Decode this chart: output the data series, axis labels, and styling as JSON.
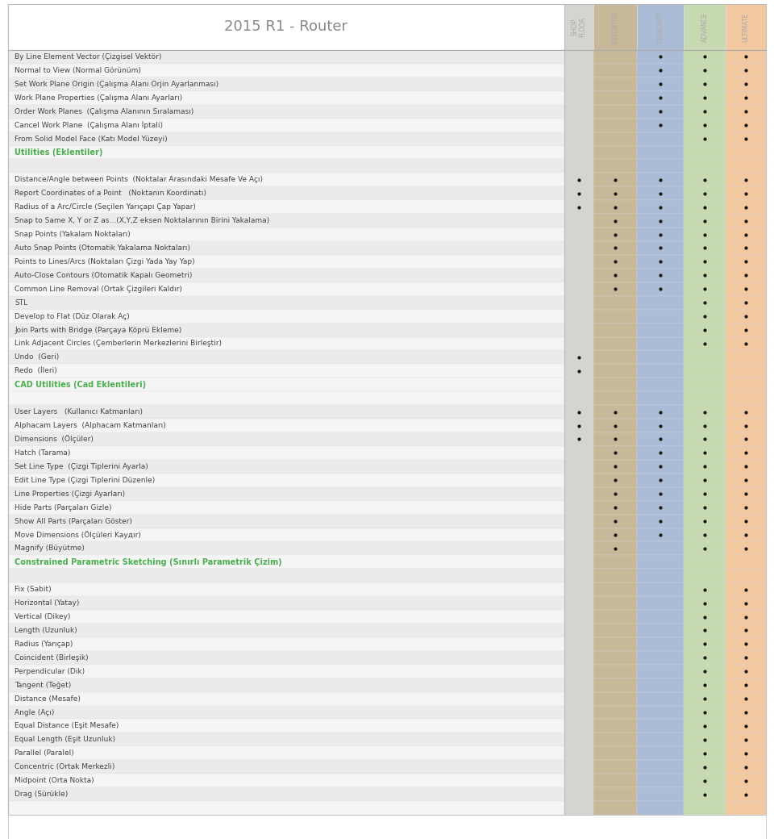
{
  "title": "2015 R1 - Router",
  "columns": [
    "SHOP\nFLOOR",
    "ESSENTIAL",
    "STANDART",
    "ADVANCE",
    "ULTIMATE"
  ],
  "col_colors": [
    "#d4d4d0",
    "#c8b89a",
    "#aabcd6",
    "#c6d9b0",
    "#f2c8a0"
  ],
  "rows": [
    {
      "label": "By Line Element Vector (Çizgisel Vektör)",
      "dots": [
        0,
        0,
        1,
        1,
        1
      ],
      "section": null
    },
    {
      "label": "Normal to View (Normal Görünüm)",
      "dots": [
        0,
        0,
        1,
        1,
        1
      ],
      "section": null
    },
    {
      "label": "Set Work Plane Origin (Çalışma Alanı Orjin Ayarlanması)",
      "dots": [
        0,
        0,
        1,
        1,
        1
      ],
      "section": null
    },
    {
      "label": "Work Plane Properties (Çalışma Alanı Ayarları)",
      "dots": [
        0,
        0,
        1,
        1,
        1
      ],
      "section": null
    },
    {
      "label": "Order Work Planes  (Çalışma Alanının Sıralaması)",
      "dots": [
        0,
        0,
        1,
        1,
        1
      ],
      "section": null
    },
    {
      "label": "Cancel Work Plane  (Çalışma Alanı İptali)",
      "dots": [
        0,
        0,
        1,
        1,
        1
      ],
      "section": null
    },
    {
      "label": "From Solid Model Face (Katı Model Yüzeyi)",
      "dots": [
        0,
        0,
        0,
        1,
        1
      ],
      "section": null
    },
    {
      "label": "Utilities (Eklentiler)",
      "dots": [
        0,
        0,
        0,
        0,
        0
      ],
      "section": "green"
    },
    {
      "label": "",
      "dots": [
        0,
        0,
        0,
        0,
        0
      ],
      "section": null
    },
    {
      "label": "Distance/Angle between Points  (Noktalar Arasındaki Mesafe Ve Açı)",
      "dots": [
        1,
        1,
        1,
        1,
        1
      ],
      "section": null
    },
    {
      "label": "Report Coordinates of a Point   (Noktanın Koordinatı)",
      "dots": [
        1,
        1,
        1,
        1,
        1
      ],
      "section": null
    },
    {
      "label": "Radius of a Arc/Circle (Seçilen Yarıçapı Çap Yapar)",
      "dots": [
        1,
        1,
        1,
        1,
        1
      ],
      "section": null
    },
    {
      "label": "Snap to Same X, Y or Z as…(X,Y,Z eksen Noktalarının Birini Yakalama)",
      "dots": [
        0,
        1,
        1,
        1,
        1
      ],
      "section": null
    },
    {
      "label": "Snap Points (Yakalam Noktaları)",
      "dots": [
        0,
        1,
        1,
        1,
        1
      ],
      "section": null
    },
    {
      "label": "Auto Snap Points (Otomatik Yakalama Noktaları)",
      "dots": [
        0,
        1,
        1,
        1,
        1
      ],
      "section": null
    },
    {
      "label": "Points to Lines/Arcs (Noktaları Çizgi Yada Yay Yap)",
      "dots": [
        0,
        1,
        1,
        1,
        1
      ],
      "section": null
    },
    {
      "label": "Auto-Close Contours (Otomatik Kapalı Geometri)",
      "dots": [
        0,
        1,
        1,
        1,
        1
      ],
      "section": null
    },
    {
      "label": "Common Line Removal (Ortak Çizgileri Kaldır)",
      "dots": [
        0,
        1,
        1,
        1,
        1
      ],
      "section": null
    },
    {
      "label": "STL",
      "dots": [
        0,
        0,
        0,
        1,
        1
      ],
      "section": null
    },
    {
      "label": "Develop to Flat (Düz Olarak Aç)",
      "dots": [
        0,
        0,
        0,
        1,
        1
      ],
      "section": null
    },
    {
      "label": "Join Parts with Bridge (Parçaya Köprü Ekleme)",
      "dots": [
        0,
        0,
        0,
        1,
        1
      ],
      "section": null
    },
    {
      "label": "Link Adjacent Circles (Çemberlerin Merkezlerini Birleştir)",
      "dots": [
        0,
        0,
        0,
        1,
        1
      ],
      "section": null
    },
    {
      "label": "Undo  (Geri)",
      "dots": [
        1,
        0,
        0,
        0,
        0
      ],
      "section": null
    },
    {
      "label": "Redo  (İleri)",
      "dots": [
        1,
        0,
        0,
        0,
        0
      ],
      "section": null
    },
    {
      "label": "CAD Utilities (Cad Eklentileri)",
      "dots": [
        0,
        0,
        0,
        0,
        0
      ],
      "section": "green"
    },
    {
      "label": "",
      "dots": [
        0,
        0,
        0,
        0,
        0
      ],
      "section": null
    },
    {
      "label": "User Layers   (Kullanıcı Katmanları)",
      "dots": [
        1,
        1,
        1,
        1,
        1
      ],
      "section": null
    },
    {
      "label": "Alphacam Layers  (Alphacam Katmanları)",
      "dots": [
        1,
        1,
        1,
        1,
        1
      ],
      "section": null
    },
    {
      "label": "Dimensions  (Ölçüler)",
      "dots": [
        1,
        1,
        1,
        1,
        1
      ],
      "section": null
    },
    {
      "label": "Hatch (Tarama)",
      "dots": [
        0,
        1,
        1,
        1,
        1
      ],
      "section": null
    },
    {
      "label": "Set Line Type  (Çizgi Tiplerini Ayarla)",
      "dots": [
        0,
        1,
        1,
        1,
        1
      ],
      "section": null
    },
    {
      "label": "Edit Line Type (Çizgi Tiplerini Düzenle)",
      "dots": [
        0,
        1,
        1,
        1,
        1
      ],
      "section": null
    },
    {
      "label": "Line Properties (Çizgi Ayarları)",
      "dots": [
        0,
        1,
        1,
        1,
        1
      ],
      "section": null
    },
    {
      "label": "Hide Parts (Parçaları Gizle)",
      "dots": [
        0,
        1,
        1,
        1,
        1
      ],
      "section": null
    },
    {
      "label": "Show All Parts (Parçaları Göster)",
      "dots": [
        0,
        1,
        1,
        1,
        1
      ],
      "section": null
    },
    {
      "label": "Move Dimensions (Ölçüleri Kayдır)",
      "dots": [
        0,
        1,
        1,
        1,
        1
      ],
      "section": null
    },
    {
      "label": "Magnify (Büyütme)",
      "dots": [
        0,
        1,
        0,
        1,
        1
      ],
      "section": null
    },
    {
      "label": "Constrained Parametric Sketching (Sınırlı Parametrik Çizim)",
      "dots": [
        0,
        0,
        0,
        0,
        0
      ],
      "section": "green"
    },
    {
      "label": "",
      "dots": [
        0,
        0,
        0,
        0,
        0
      ],
      "section": null
    },
    {
      "label": "Fix (Sabit)",
      "dots": [
        0,
        0,
        0,
        1,
        1
      ],
      "section": null
    },
    {
      "label": "Horizontal (Yatay)",
      "dots": [
        0,
        0,
        0,
        1,
        1
      ],
      "section": null
    },
    {
      "label": "Vertical (Dikey)",
      "dots": [
        0,
        0,
        0,
        1,
        1
      ],
      "section": null
    },
    {
      "label": "Length (Uzunluk)",
      "dots": [
        0,
        0,
        0,
        1,
        1
      ],
      "section": null
    },
    {
      "label": "Radius (Yarıçap)",
      "dots": [
        0,
        0,
        0,
        1,
        1
      ],
      "section": null
    },
    {
      "label": "Coincident (Birleşik)",
      "dots": [
        0,
        0,
        0,
        1,
        1
      ],
      "section": null
    },
    {
      "label": "Perpendicular (Dik)",
      "dots": [
        0,
        0,
        0,
        1,
        1
      ],
      "section": null
    },
    {
      "label": "Tangent (Teğet)",
      "dots": [
        0,
        0,
        0,
        1,
        1
      ],
      "section": null
    },
    {
      "label": "Distance (Mesafe)",
      "dots": [
        0,
        0,
        0,
        1,
        1
      ],
      "section": null
    },
    {
      "label": "Angle (Açı)",
      "dots": [
        0,
        0,
        0,
        1,
        1
      ],
      "section": null
    },
    {
      "label": "Equal Distance (Eşit Mesafe)",
      "dots": [
        0,
        0,
        0,
        1,
        1
      ],
      "section": null
    },
    {
      "label": "Equal Length (Eşit Uzunluk)",
      "dots": [
        0,
        0,
        0,
        1,
        1
      ],
      "section": null
    },
    {
      "label": "Parallel (Paralel)",
      "dots": [
        0,
        0,
        0,
        1,
        1
      ],
      "section": null
    },
    {
      "label": "Concentric (Ortak Merkezli)",
      "dots": [
        0,
        0,
        0,
        1,
        1
      ],
      "section": null
    },
    {
      "label": "Midpoint (Orta Nokta)",
      "dots": [
        0,
        0,
        0,
        1,
        1
      ],
      "section": null
    },
    {
      "label": "Drag (Sürükle)",
      "dots": [
        0,
        0,
        0,
        1,
        1
      ],
      "section": null
    },
    {
      "label": "",
      "dots": [
        0,
        0,
        0,
        0,
        0
      ],
      "section": null
    }
  ],
  "text_color": "#444444",
  "green_color": "#4caf50",
  "dot_color": "#111111",
  "line_color": "#dddddd",
  "header_text_color": "#aaaaaa",
  "title_color": "#888888",
  "bg_even": "#ebebeb",
  "bg_odd": "#f5f5f5"
}
